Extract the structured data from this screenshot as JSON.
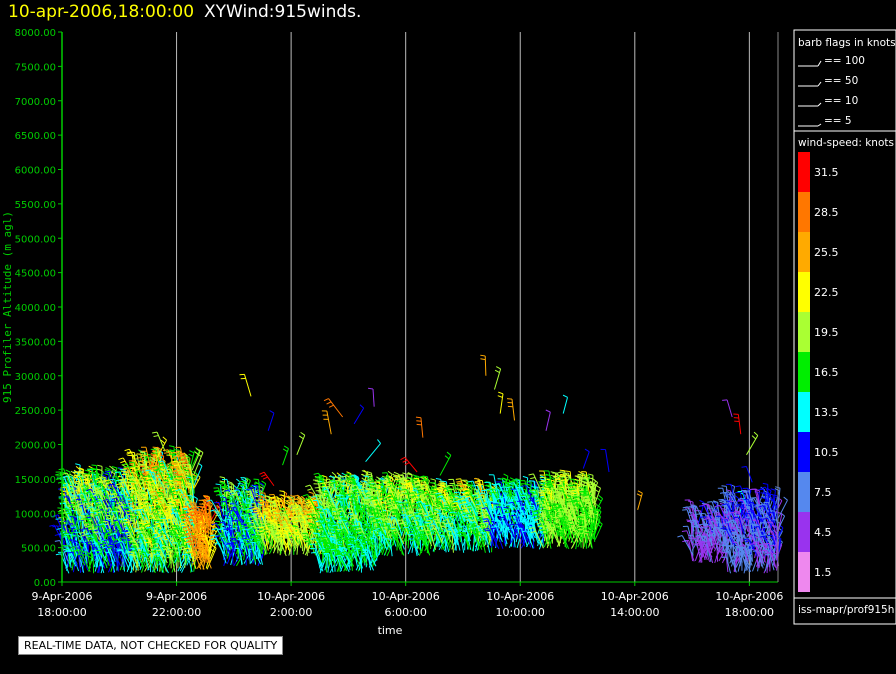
{
  "title": {
    "date": "10-apr-2006,18:00:00",
    "name": "XYWind:915winds."
  },
  "colors": {
    "background": "#000000",
    "axis": "#00cc00",
    "grid": "#bbbbbb",
    "text": "#ffffff"
  },
  "chart_data": {
    "type": "scatter",
    "subtype": "wind-barb",
    "title": "XYWind:915winds.",
    "xlabel": "time",
    "ylabel": "915 Profiler Altitude (m agl)",
    "ylim": [
      0,
      8000
    ],
    "yticks": [
      "0.00",
      "500.00",
      "1000.00",
      "1500.00",
      "2000.00",
      "2500.00",
      "3000.00",
      "3500.00",
      "4000.00",
      "4500.00",
      "5000.00",
      "5500.00",
      "6000.00",
      "6500.00",
      "7000.00",
      "7500.00",
      "8000.00"
    ],
    "xlim_hours": [
      0,
      25
    ],
    "xticks": [
      {
        "h": 0,
        "date": "9-Apr-2006",
        "time": "18:00:00"
      },
      {
        "h": 4,
        "date": "9-Apr-2006",
        "time": "22:00:00"
      },
      {
        "h": 8,
        "date": "10-Apr-2006",
        "time": "2:00:00"
      },
      {
        "h": 12,
        "date": "10-Apr-2006",
        "time": "6:00:00"
      },
      {
        "h": 16,
        "date": "10-Apr-2006",
        "time": "10:00:00"
      },
      {
        "h": 20,
        "date": "10-Apr-2006",
        "time": "14:00:00"
      },
      {
        "h": 24,
        "date": "10-Apr-2006",
        "time": "18:00:00"
      }
    ],
    "profiles": [
      {
        "h_start": 0.1,
        "h_end": 2.5,
        "z_min": 150,
        "z_max": 1400,
        "speed_min": 5,
        "speed_max": 24
      },
      {
        "h_start": 2.5,
        "h_end": 4.6,
        "z_min": 150,
        "z_max": 1650,
        "speed_min": 8,
        "speed_max": 29
      },
      {
        "h_start": 4.6,
        "h_end": 5.2,
        "z_min": 200,
        "z_max": 900,
        "speed_min": 20,
        "speed_max": 32
      },
      {
        "h_start": 5.6,
        "h_end": 7.0,
        "z_min": 250,
        "z_max": 1200,
        "speed_min": 6,
        "speed_max": 22
      },
      {
        "h_start": 7.0,
        "h_end": 9.0,
        "z_min": 400,
        "z_max": 1000,
        "speed_min": 14,
        "speed_max": 28
      },
      {
        "h_start": 9.0,
        "h_end": 11.0,
        "z_min": 150,
        "z_max": 1300,
        "speed_min": 10,
        "speed_max": 22
      },
      {
        "h_start": 11.0,
        "h_end": 13.0,
        "z_min": 400,
        "z_max": 1300,
        "speed_min": 10,
        "speed_max": 24
      },
      {
        "h_start": 13.0,
        "h_end": 15.0,
        "z_min": 450,
        "z_max": 1200,
        "speed_min": 9,
        "speed_max": 25
      },
      {
        "h_start": 15.0,
        "h_end": 16.8,
        "z_min": 500,
        "z_max": 1200,
        "speed_min": 9,
        "speed_max": 17
      },
      {
        "h_start": 16.8,
        "h_end": 18.6,
        "z_min": 500,
        "z_max": 1300,
        "speed_min": 14,
        "speed_max": 23
      },
      {
        "h_start": 22.0,
        "h_end": 23.2,
        "z_min": 300,
        "z_max": 900,
        "speed_min": 2,
        "speed_max": 10
      },
      {
        "h_start": 23.2,
        "h_end": 25.0,
        "z_min": 150,
        "z_max": 1100,
        "speed_min": 2,
        "speed_max": 13
      }
    ],
    "scattered_barbs": [
      {
        "h": 3.3,
        "z": 1800,
        "speed": 22
      },
      {
        "h": 3.6,
        "z": 1900,
        "speed": 20
      },
      {
        "h": 3.9,
        "z": 1700,
        "speed": 24
      },
      {
        "h": 6.6,
        "z": 2700,
        "speed": 22
      },
      {
        "h": 7.2,
        "z": 2200,
        "speed": 10
      },
      {
        "h": 7.7,
        "z": 1700,
        "speed": 16
      },
      {
        "h": 7.4,
        "z": 1400,
        "speed": 31
      },
      {
        "h": 8.2,
        "z": 1850,
        "speed": 19
      },
      {
        "h": 9.4,
        "z": 2150,
        "speed": 25
      },
      {
        "h": 9.8,
        "z": 2400,
        "speed": 27
      },
      {
        "h": 10.2,
        "z": 2300,
        "speed": 10
      },
      {
        "h": 10.9,
        "z": 2550,
        "speed": 5
      },
      {
        "h": 10.6,
        "z": 1750,
        "speed": 12
      },
      {
        "h": 12.6,
        "z": 2100,
        "speed": 28
      },
      {
        "h": 12.4,
        "z": 1600,
        "speed": 31
      },
      {
        "h": 13.2,
        "z": 1550,
        "speed": 17
      },
      {
        "h": 14.8,
        "z": 3000,
        "speed": 24
      },
      {
        "h": 15.1,
        "z": 2800,
        "speed": 20
      },
      {
        "h": 15.3,
        "z": 2450,
        "speed": 22
      },
      {
        "h": 15.8,
        "z": 2350,
        "speed": 26
      },
      {
        "h": 16.9,
        "z": 2200,
        "speed": 5
      },
      {
        "h": 17.5,
        "z": 2450,
        "speed": 12
      },
      {
        "h": 18.2,
        "z": 1650,
        "speed": 11
      },
      {
        "h": 19.1,
        "z": 1600,
        "speed": 10
      },
      {
        "h": 20.1,
        "z": 1050,
        "speed": 24
      },
      {
        "h": 23.4,
        "z": 2400,
        "speed": 5
      },
      {
        "h": 23.7,
        "z": 2150,
        "speed": 30
      },
      {
        "h": 23.9,
        "z": 1850,
        "speed": 18
      },
      {
        "h": 24.1,
        "z": 1450,
        "speed": 11
      }
    ],
    "flag_legend": {
      "title": "barb flags in knots",
      "items": [
        "== 100",
        "== 50",
        "== 10",
        "== 5"
      ]
    },
    "speed_legend": {
      "title": "wind-speed: knots",
      "bins": [
        {
          "label": "31.5",
          "color": "#ff0000"
        },
        {
          "label": "28.5",
          "color": "#ff7700"
        },
        {
          "label": "25.5",
          "color": "#ffaa00"
        },
        {
          "label": "22.5",
          "color": "#ffff00"
        },
        {
          "label": "19.5",
          "color": "#aaff33"
        },
        {
          "label": "16.5",
          "color": "#00ee00"
        },
        {
          "label": "13.5",
          "color": "#00ffff"
        },
        {
          "label": "10.5",
          "color": "#0000ff"
        },
        {
          "label": "7.5",
          "color": "#5588ee"
        },
        {
          "label": "4.5",
          "color": "#9933ee"
        },
        {
          "label": "1.5",
          "color": "#ee88ee"
        }
      ]
    }
  },
  "footer": {
    "source": "iss-mapr/prof915h",
    "qc_note": "REAL-TIME DATA, NOT CHECKED FOR QUALITY"
  }
}
